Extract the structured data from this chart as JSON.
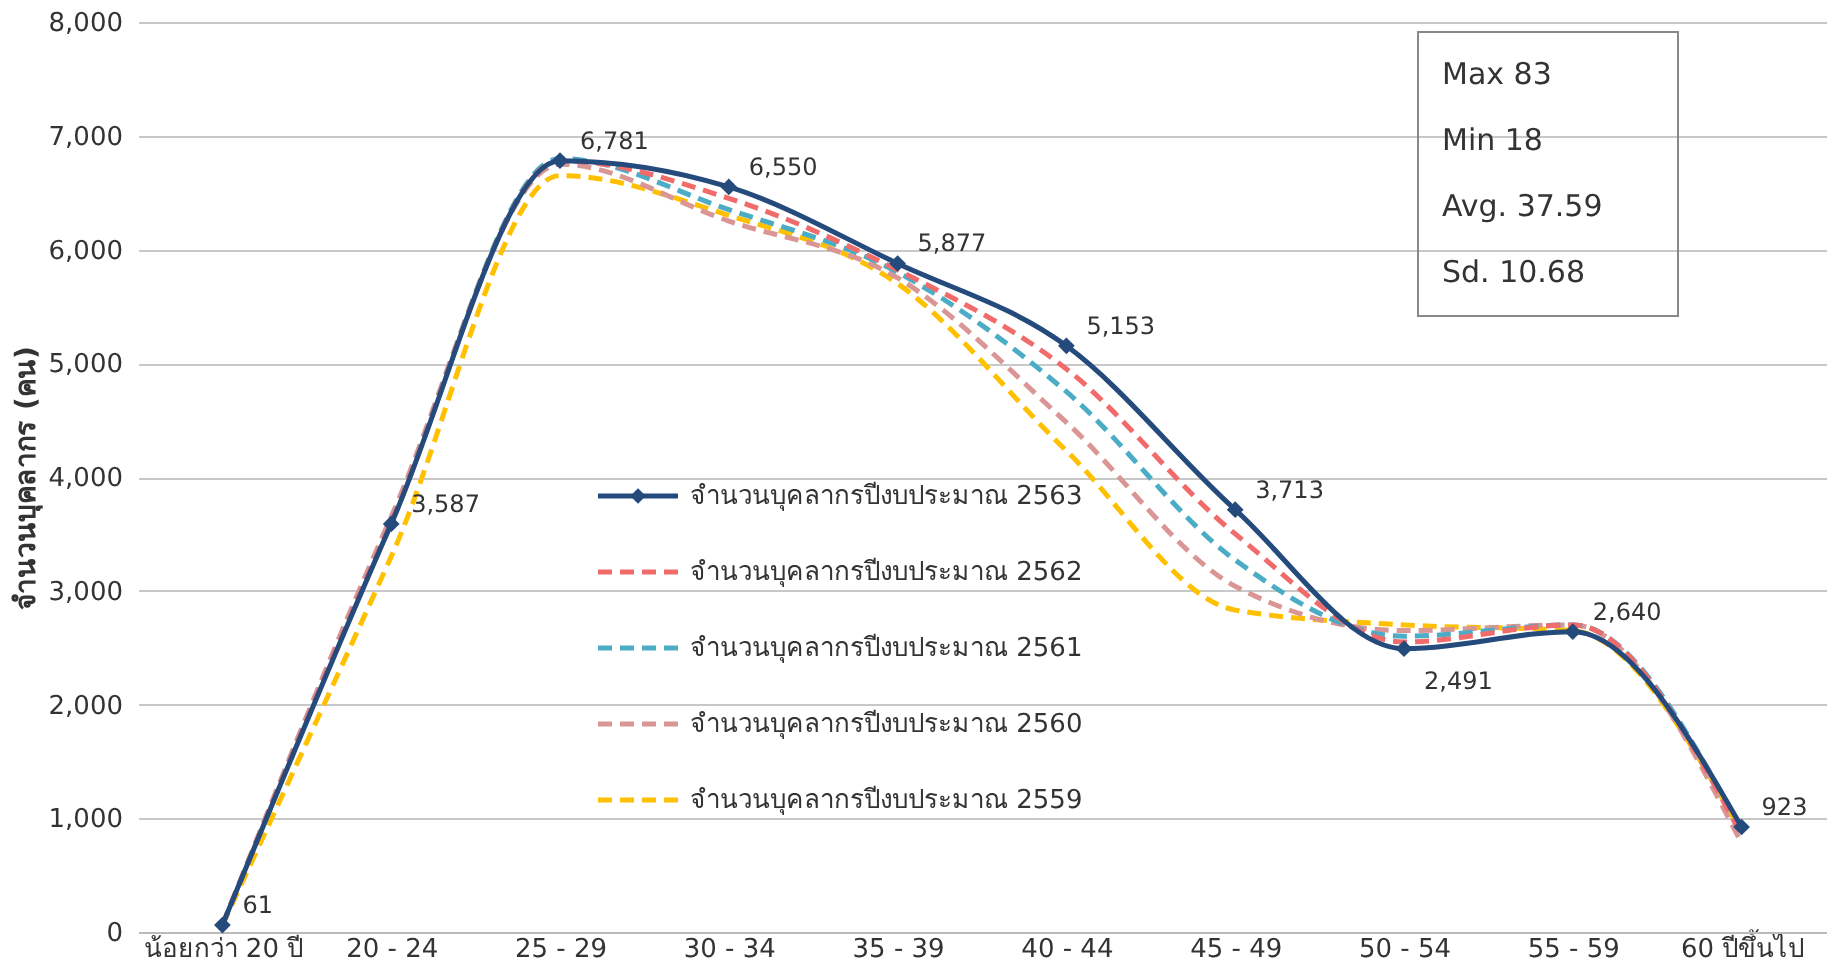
{
  "chart_data": {
    "type": "line",
    "ylabel": "จำนวนบุคลากร (คน)",
    "categories": [
      "น้อยกว่า 20 ปี",
      "20 - 24",
      "25 - 29",
      "30 - 34",
      "35 - 39",
      "40 - 44",
      "45 - 49",
      "50 - 54",
      "55 - 59",
      "60 ปีขึ้นไป"
    ],
    "series": [
      {
        "name": "จำนวนบุคลากรปีงบประมาณ 2563",
        "color": "#254a7c",
        "marker": "diamond",
        "line_style": "solid",
        "values": [
          61,
          3587,
          6781,
          6550,
          5877,
          5153,
          3713,
          2491,
          2640,
          923
        ],
        "value_labels": [
          "61",
          "3,587",
          "6,781",
          "6,550",
          "5,877",
          "5,153",
          "3,713",
          "2,491",
          "2,640",
          "923"
        ]
      },
      {
        "name": "จำนวนบุคลากรปีงบประมาณ 2562",
        "color": "#f26b6b",
        "marker": "none",
        "line_style": "dashed",
        "values": [
          60,
          3600,
          6780,
          6450,
          5820,
          4950,
          3500,
          2550,
          2700,
          850
        ]
      },
      {
        "name": "จำนวนบุคลากรปีงบประมาณ 2561",
        "color": "#4bacc6",
        "marker": "none",
        "line_style": "dashed",
        "values": [
          60,
          3600,
          6800,
          6350,
          5800,
          4750,
          3270,
          2600,
          2700,
          900
        ]
      },
      {
        "name": "จำนวนบุคลากรปีงบประมาณ 2560",
        "color": "#d99694",
        "marker": "none",
        "line_style": "dashed",
        "values": [
          60,
          3650,
          6750,
          6250,
          5750,
          4480,
          3040,
          2650,
          2700,
          780
        ]
      },
      {
        "name": "จำนวนบุคลากรปีงบประมาณ 2559",
        "color": "#ffc000",
        "marker": "none",
        "line_style": "dashed",
        "values": [
          60,
          3300,
          6650,
          6300,
          5700,
          4230,
          2830,
          2700,
          2650,
          880
        ]
      }
    ],
    "ylim": [
      0,
      8000
    ],
    "yticks": [
      0,
      {
        "value": 1000,
        "label": "1,000"
      },
      {
        "value": 2000,
        "label": "2,000"
      },
      {
        "value": 3000,
        "label": "3,000"
      },
      {
        "value": 4000,
        "label": "4,000"
      },
      {
        "value": 5000,
        "label": "5,000"
      },
      {
        "value": 6000,
        "label": "6,000"
      },
      {
        "value": 7000,
        "label": "7,000"
      },
      {
        "value": 8000,
        "label": "8,000"
      }
    ],
    "grid": "y",
    "legend": "bottom",
    "annotations": [
      "Max  83",
      "Min  18",
      "Avg. 37.59",
      "Sd.  10.68"
    ]
  }
}
